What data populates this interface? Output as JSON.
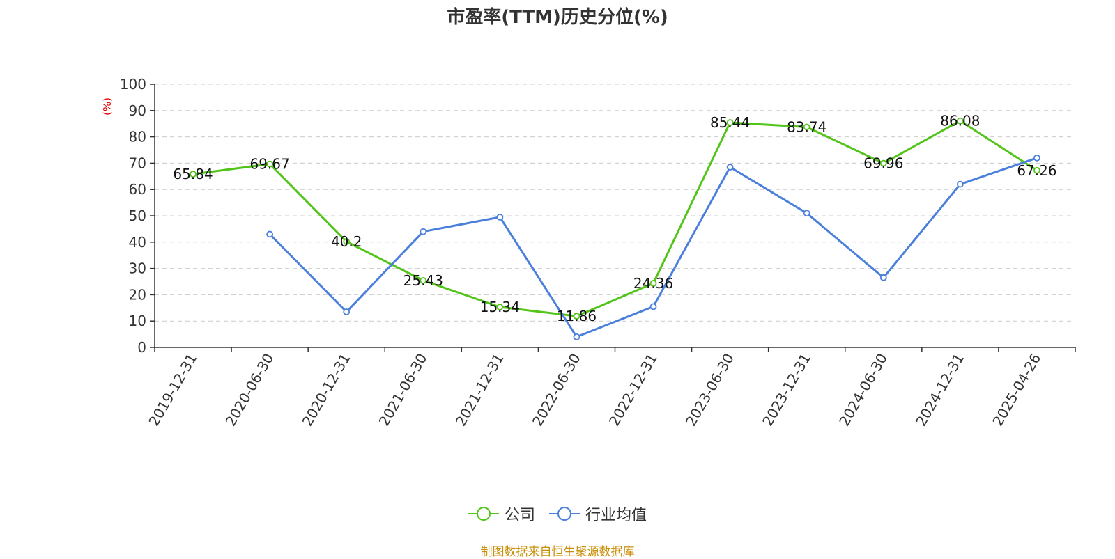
{
  "chart_data": {
    "type": "line",
    "title": "市盈率(TTM)历史分位(%)",
    "ylabel": "(%)",
    "xlabel": "",
    "ylim": [
      0,
      100
    ],
    "yticks": [
      0,
      10,
      20,
      30,
      40,
      50,
      60,
      70,
      80,
      90,
      100
    ],
    "grid": true,
    "legend_position": "bottom-center",
    "x": [
      "2019-12-31",
      "2020-06-30",
      "2020-12-31",
      "2021-06-30",
      "2021-12-31",
      "2022-06-30",
      "2022-12-31",
      "2023-06-30",
      "2023-12-31",
      "2024-06-30",
      "2024-12-31",
      "2025-04-26"
    ],
    "series": [
      {
        "name": "公司",
        "color": "#52c41a",
        "show_labels": true,
        "values": [
          65.84,
          69.67,
          40.2,
          25.43,
          15.34,
          11.86,
          24.36,
          85.44,
          83.74,
          69.96,
          86.08,
          67.26
        ],
        "value_labels": [
          "65.84",
          "69.67",
          "40.2",
          "25.43",
          "15.34",
          "11.86",
          "24.36",
          "85.44",
          "83.74",
          "69.96",
          "86.08",
          "67.26"
        ]
      },
      {
        "name": "行业均值",
        "color": "#4a7fdc",
        "show_labels": false,
        "values": [
          null,
          43,
          13.5,
          44,
          49.5,
          4,
          15.5,
          68.5,
          51,
          26.5,
          62,
          72
        ]
      }
    ]
  },
  "legend": [
    {
      "label": "公司",
      "color": "#52c41a"
    },
    {
      "label": "行业均值",
      "color": "#4a7fdc"
    }
  ],
  "footer": "制图数据来自恒生聚源数据库"
}
